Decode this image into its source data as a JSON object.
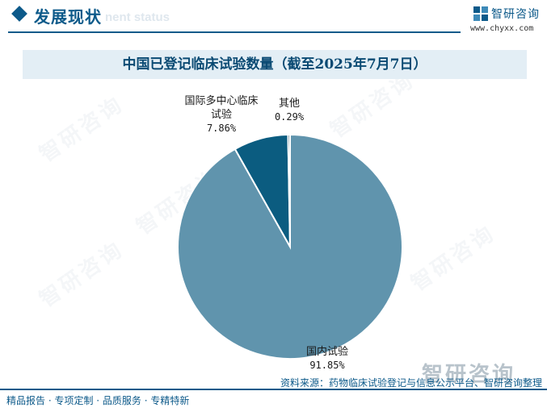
{
  "header": {
    "section_title": "发展现状",
    "section_subtitle": "nent status",
    "brand_name": "智研咨询",
    "brand_url": "www.chyxx.com"
  },
  "chart_data": {
    "type": "pie",
    "title": "中国已登记临床试验数量（截至2025年7月7日）",
    "slices": [
      {
        "label_lines": [
          "国内试验"
        ],
        "value": 91.85,
        "value_text": "91.85%",
        "color": "#6094ad"
      },
      {
        "label_lines": [
          "国际多中心临床",
          "试验"
        ],
        "value": 7.86,
        "value_text": "7.86%",
        "color": "#0b5c80"
      },
      {
        "label_lines": [
          "其他"
        ],
        "value": 0.29,
        "value_text": "0.29%",
        "color": "#1f4e63"
      }
    ],
    "label_positions": [
      "bottom",
      "top-left",
      "top"
    ],
    "legend": "none"
  },
  "watermark": {
    "text": "智研咨询"
  },
  "footer": {
    "tagline": "精品报告 · 专项定制 · 品质服务 · 专精特新",
    "source": "资料来源：药物临床试验登记与信息公示平台、智研咨询整理"
  }
}
